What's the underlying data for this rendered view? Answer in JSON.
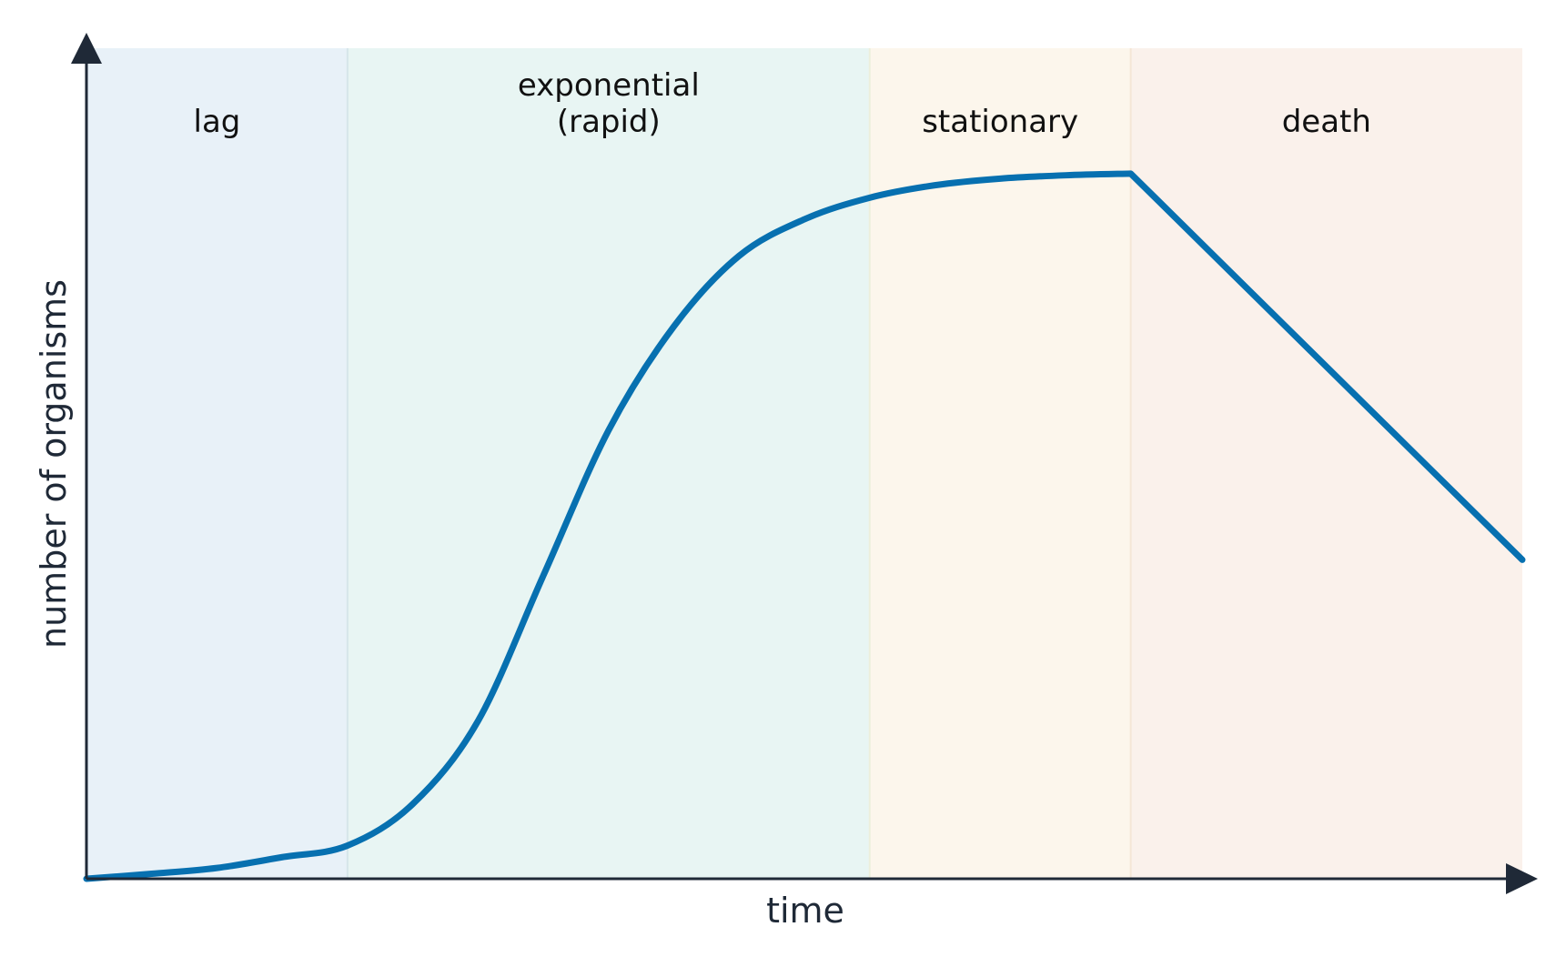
{
  "chart_data": {
    "type": "line",
    "title": "",
    "xlabel": "time",
    "ylabel": "number of organisms",
    "grid": false,
    "legend": "none",
    "axes": {
      "tick_labels": false,
      "arrows": true,
      "color": "#1f2937"
    },
    "xlim": [
      0,
      11
    ],
    "ylim": [
      0,
      100
    ],
    "phases": [
      {
        "name": "lag",
        "label_lines": [
          "lag"
        ],
        "x_range": [
          0,
          2.0
        ],
        "color": "#e8f1f8"
      },
      {
        "name": "exponential",
        "label_lines": [
          "exponential",
          "(rapid)"
        ],
        "x_range": [
          2.0,
          6.0
        ],
        "color": "#e8f5f3"
      },
      {
        "name": "stationary",
        "label_lines": [
          "stationary"
        ],
        "x_range": [
          6.0,
          8.0
        ],
        "color": "#fcf6ec"
      },
      {
        "name": "death",
        "label_lines": [
          "death"
        ],
        "x_range": [
          8.0,
          11.0
        ],
        "color": "#faf1eb"
      }
    ],
    "series": [
      {
        "color": "#0770b0",
        "x": [
          0,
          0.5,
          1.0,
          1.5,
          2.0,
          2.5,
          3.0,
          3.5,
          4.0,
          4.5,
          5.0,
          5.5,
          6.0,
          6.5,
          7.0,
          7.5,
          8.0,
          11.0
        ],
        "y": [
          0.0,
          0.6,
          1.3,
          2.6,
          4.0,
          9.0,
          19.0,
          36.5,
          54.0,
          66.5,
          75.0,
          79.4,
          82.0,
          83.5,
          84.3,
          84.7,
          84.9,
          38.4
        ]
      }
    ]
  }
}
